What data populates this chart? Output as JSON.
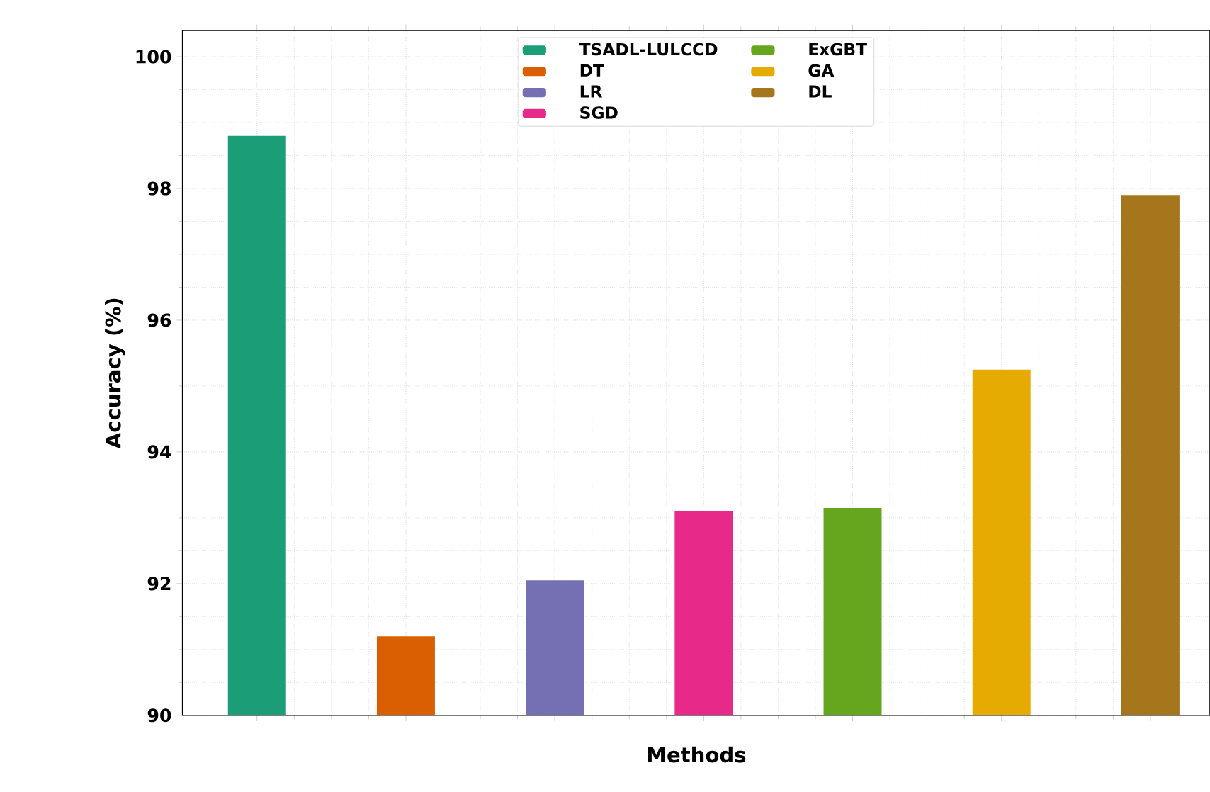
{
  "chart_data": {
    "type": "bar",
    "xlabel": "Methods",
    "ylabel": "Accuracy (%)",
    "categories": [
      null,
      null,
      null,
      null,
      null,
      null,
      null
    ],
    "series": [
      {
        "name": "TSADL-LULCCD",
        "color": "#1b9e77",
        "values": [
          98.8,
          null,
          null,
          null,
          null,
          null,
          null
        ]
      },
      {
        "name": "DT",
        "color": "#d95f02",
        "values": [
          null,
          91.2,
          null,
          null,
          null,
          null,
          null
        ]
      },
      {
        "name": "LR",
        "color": "#7570b3",
        "values": [
          null,
          null,
          92.05,
          null,
          null,
          null,
          null
        ]
      },
      {
        "name": "SGD",
        "color": "#e7298a",
        "values": [
          null,
          null,
          null,
          93.1,
          null,
          null,
          null
        ]
      },
      {
        "name": "ExGBT",
        "color": "#66a61e",
        "values": [
          null,
          null,
          null,
          null,
          93.15,
          null,
          null
        ]
      },
      {
        "name": "GA",
        "color": "#e6ab02",
        "values": [
          null,
          null,
          null,
          null,
          null,
          95.25,
          null
        ]
      },
      {
        "name": "DL",
        "color": "#a6761d",
        "values": [
          null,
          null,
          null,
          null,
          null,
          null,
          97.9
        ]
      }
    ],
    "ylim": [
      90,
      100.4
    ],
    "yticks": [
      90,
      92,
      94,
      96,
      98,
      100
    ],
    "grid": true,
    "legend": "top"
  }
}
